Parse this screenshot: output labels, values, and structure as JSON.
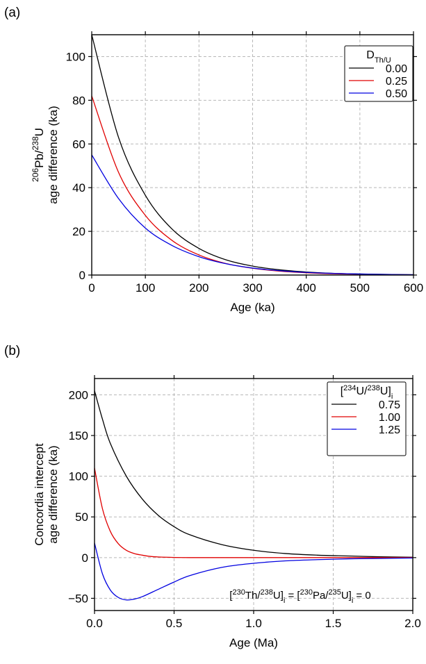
{
  "chart_data": [
    {
      "type": "line",
      "panel_label": "(a)",
      "xlabel": "Age (ka)",
      "ylabel_parts": {
        "pre": "206",
        "mid1": "Pb/",
        "sup2": "238",
        "mid2": "U",
        "line2": "age difference (ka)"
      },
      "xlim": [
        0,
        600
      ],
      "ylim": [
        0,
        110
      ],
      "xticks": [
        0,
        100,
        200,
        300,
        400,
        500,
        600
      ],
      "yticks": [
        0,
        20,
        40,
        60,
        80,
        100
      ],
      "grid": true,
      "legend": {
        "placement": "top-right",
        "title_main": "D",
        "title_sub": "Th/U",
        "entries": [
          "0.00",
          "0.25",
          "0.50"
        ]
      },
      "series": [
        {
          "name": "0.00",
          "color": "#000000",
          "x": [
            0,
            50,
            100,
            150,
            200,
            250,
            300,
            350,
            400,
            450,
            500,
            550,
            600
          ],
          "y": [
            110,
            63,
            36.5,
            21,
            12.2,
            7,
            4.1,
            2.4,
            1.4,
            0.8,
            0.5,
            0.3,
            0.15
          ]
        },
        {
          "name": "0.25",
          "color": "#e00000",
          "x": [
            0,
            50,
            100,
            150,
            200,
            250,
            300,
            350,
            400,
            450,
            500,
            550,
            600
          ],
          "y": [
            82,
            47,
            27.3,
            15.8,
            9.2,
            5.3,
            3.1,
            1.8,
            1.05,
            0.6,
            0.35,
            0.2,
            0.1
          ]
        },
        {
          "name": "0.50",
          "color": "#0000e0",
          "x": [
            0,
            50,
            100,
            150,
            200,
            250,
            300,
            350,
            400,
            450,
            500,
            550,
            600
          ],
          "y": [
            55,
            35,
            21.5,
            13.5,
            8.4,
            5.2,
            3.2,
            2.0,
            1.2,
            0.75,
            0.45,
            0.28,
            0.15
          ]
        }
      ]
    },
    {
      "type": "line",
      "panel_label": "(b)",
      "xlabel": "Age (Ma)",
      "ylabel_parts": {
        "line1": "Concordia intercept",
        "line2": "age difference (ka)"
      },
      "xlim": [
        0,
        2.0
      ],
      "ylim": [
        -65,
        220
      ],
      "xticks": [
        0.0,
        0.5,
        1.0,
        1.5,
        2.0
      ],
      "xtick_labels": [
        "0.0",
        "0.5",
        "1.0",
        "1.5",
        "2.0"
      ],
      "yticks": [
        -50,
        0,
        50,
        100,
        150,
        200
      ],
      "ytick_labels": [
        "−50",
        "0",
        "50",
        "100",
        "150",
        "200"
      ],
      "grid": true,
      "annotation": {
        "parts": [
          "[",
          "230",
          "Th/",
          "238",
          "U]",
          "i",
          " = [",
          "230",
          "Pa/",
          "235",
          "U]",
          "i",
          " = 0"
        ]
      },
      "legend": {
        "placement": "top-right",
        "title_parts": [
          "[",
          "234",
          "U/",
          "238",
          "U]",
          "i"
        ],
        "entries": [
          "0.75",
          "1.00",
          "1.25"
        ]
      },
      "series": [
        {
          "name": "0.75",
          "color": "#000000",
          "x": [
            0,
            0.05,
            0.1,
            0.2,
            0.3,
            0.4,
            0.5,
            0.6,
            0.8,
            1.0,
            1.2,
            1.4,
            1.6,
            1.8,
            2.0
          ],
          "y": [
            205,
            170,
            140,
            100,
            72,
            52,
            38,
            28,
            16,
            9,
            5,
            3,
            2,
            1,
            0.5
          ]
        },
        {
          "name": "1.00",
          "color": "#e00000",
          "x": [
            0,
            0.05,
            0.1,
            0.15,
            0.2,
            0.25,
            0.3,
            0.35,
            0.4,
            0.5,
            0.6,
            0.8,
            1.0,
            1.5,
            2.0
          ],
          "y": [
            110,
            60,
            32,
            17,
            9,
            5,
            3,
            1.5,
            0.8,
            0.2,
            0,
            0,
            0,
            0,
            0
          ]
        },
        {
          "name": "1.25",
          "color": "#0000e0",
          "x": [
            0,
            0.05,
            0.1,
            0.15,
            0.2,
            0.25,
            0.3,
            0.4,
            0.5,
            0.6,
            0.8,
            1.0,
            1.2,
            1.4,
            1.6,
            1.8,
            2.0
          ],
          "y": [
            18,
            -20,
            -40,
            -49,
            -52,
            -51,
            -48,
            -39,
            -30,
            -22,
            -12,
            -7,
            -4,
            -2.5,
            -1.5,
            -1,
            -0.5
          ]
        }
      ]
    }
  ]
}
